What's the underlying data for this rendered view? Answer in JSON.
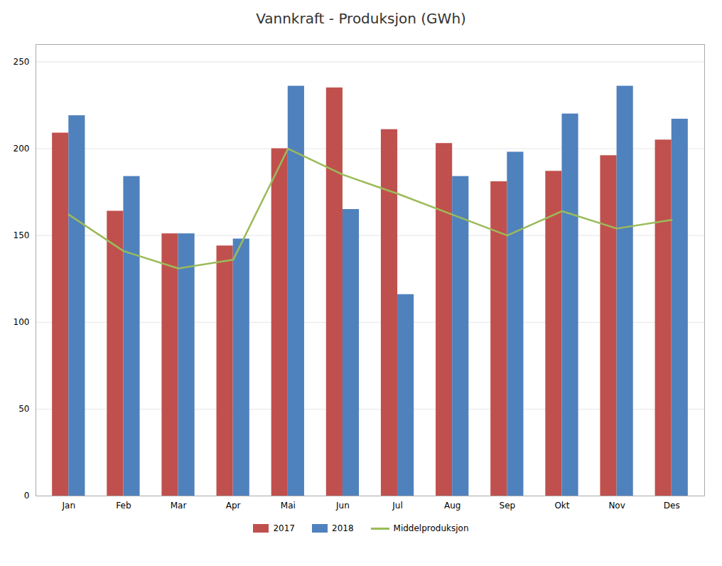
{
  "chart_data": {
    "type": "bar",
    "title": "Vannkraft - Produksjon (GWh)",
    "categories": [
      "Jan",
      "Feb",
      "Mar",
      "Apr",
      "Mai",
      "Jun",
      "Jul",
      "Aug",
      "Sep",
      "Okt",
      "Nov",
      "Des"
    ],
    "series": [
      {
        "name": "2017",
        "type": "bar",
        "color": "#C0504D",
        "values": [
          209,
          164,
          151,
          144,
          200,
          235,
          211,
          203,
          181,
          187,
          196,
          205
        ]
      },
      {
        "name": "2018",
        "type": "bar",
        "color": "#4F81BD",
        "values": [
          219,
          184,
          151,
          148,
          236,
          165,
          116,
          184,
          198,
          220,
          236,
          217
        ]
      },
      {
        "name": "Middelproduksjon",
        "type": "line",
        "color": "#9BBB59",
        "values": [
          162,
          141,
          131,
          136,
          200,
          185,
          174,
          162,
          150,
          164,
          154,
          159
        ]
      }
    ],
    "ylim": [
      0,
      260
    ],
    "yticks": [
      0,
      50,
      100,
      150,
      200,
      250
    ],
    "grid": true,
    "legend": "bottom"
  }
}
